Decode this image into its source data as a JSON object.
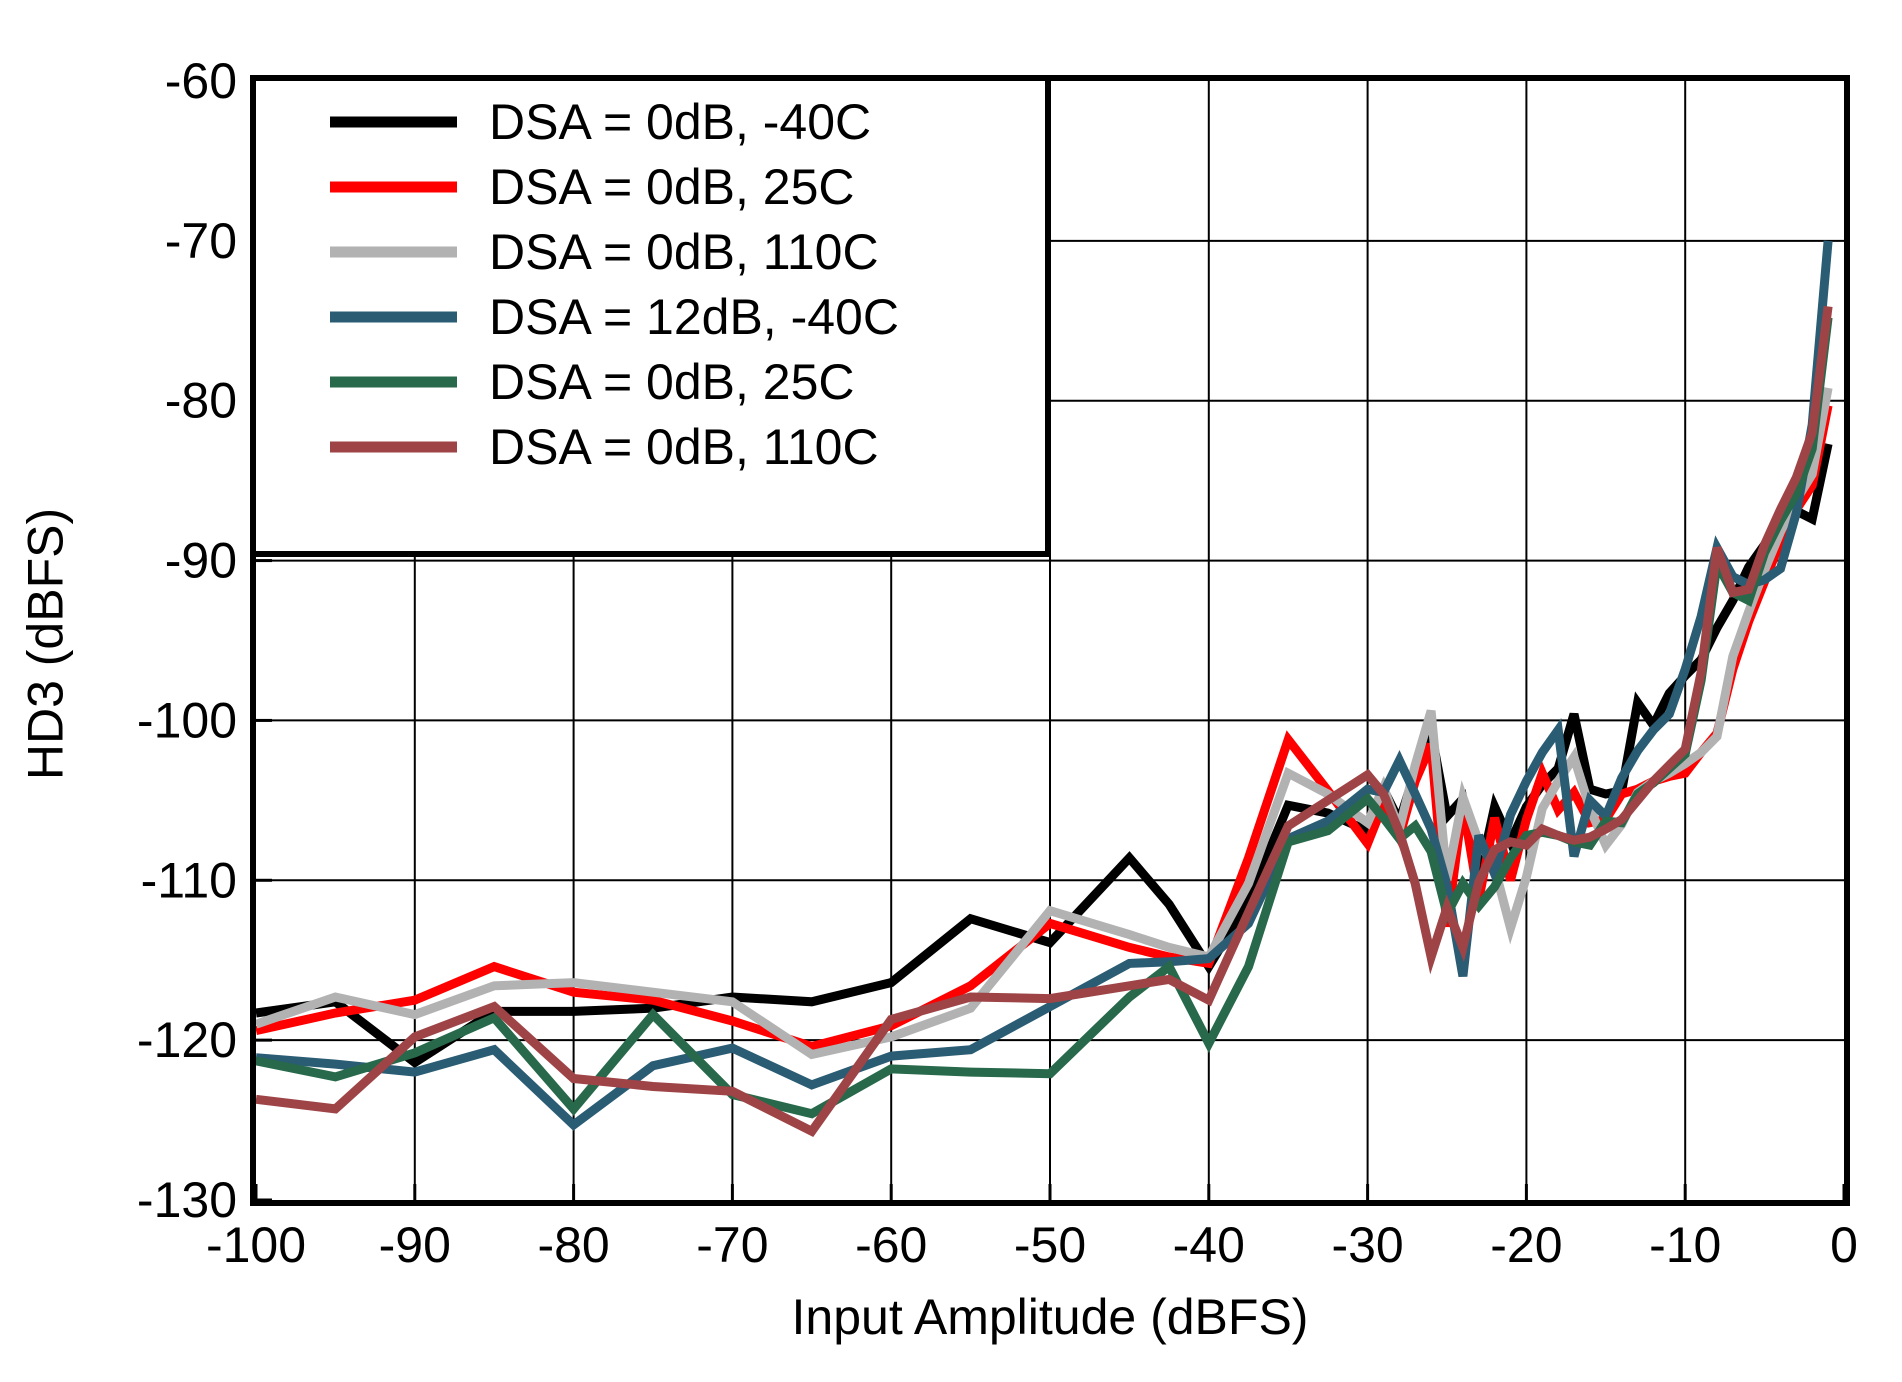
{
  "page": {
    "background": "#ffffff"
  },
  "axes": {
    "y_label": "HD3 (dBFS)",
    "x_label": "Input Amplitude (dBFS)",
    "y_ticks": [
      -60,
      -70,
      -80,
      -90,
      -100,
      -110,
      -120,
      -130
    ],
    "x_ticks": [
      -100,
      -90,
      -80,
      -70,
      -60,
      -50,
      -40,
      -30,
      -20,
      -10,
      0
    ]
  },
  "chart_data": {
    "type": "line",
    "title": "",
    "xlabel": "Input Amplitude (dBFS)",
    "ylabel": "HD3 (dBFS)",
    "xlim": [
      -100,
      0
    ],
    "ylim": [
      -130,
      -60
    ],
    "grid": "on",
    "grid_color": "#000000",
    "frame_color": "#000000",
    "legend_position": "top-left",
    "x": [
      -100,
      -95,
      -90,
      -85,
      -80,
      -75,
      -70,
      -65,
      -60,
      -55,
      -50,
      -45,
      -42.5,
      -40,
      -37.5,
      -35,
      -32.5,
      -30,
      -29,
      -28,
      -27,
      -26,
      -25,
      -24,
      -23,
      -22,
      -21,
      -20,
      -19,
      -18,
      -17,
      -16,
      -15,
      -14,
      -13,
      -12,
      -11,
      -10,
      -9,
      -8,
      -7,
      -6,
      -5,
      -4,
      -3,
      -2,
      -1
    ],
    "series": [
      {
        "name": "DSA = 0dB, -40C",
        "color": "#000000",
        "values": [
          -118.3,
          -117.6,
          -121.4,
          -118.2,
          -118.2,
          -118.0,
          -117.3,
          -117.6,
          -116.4,
          -112.4,
          -113.9,
          -108.6,
          -111.5,
          -115.4,
          -111.3,
          -105.3,
          -105.8,
          -106.9,
          -104.3,
          -106.3,
          -103.2,
          -100.7,
          -106.0,
          -104.9,
          -109.9,
          -105.4,
          -107.6,
          -105.4,
          -104.0,
          -103.0,
          -99.6,
          -104.3,
          -104.6,
          -104.4,
          -98.9,
          -100.3,
          -98.3,
          -97.2,
          -96.2,
          -94.2,
          -92.5,
          -90.4,
          -89.0,
          -88.0,
          -86.9,
          -87.4,
          -82.7
        ]
      },
      {
        "name": "DSA = 0dB, 25C",
        "color": "#ff0000",
        "values": [
          -119.4,
          -118.3,
          -117.5,
          -115.4,
          -117.0,
          -117.5,
          -118.8,
          -120.4,
          -119.1,
          -116.6,
          -112.7,
          -114.2,
          -114.8,
          -115.2,
          -108.6,
          -101.2,
          -104.4,
          -107.7,
          -105.2,
          -107.3,
          -103.8,
          -101.5,
          -112.9,
          -105.2,
          -111.2,
          -106.1,
          -110.0,
          -106.2,
          -103.3,
          -105.6,
          -104.5,
          -106.4,
          -106.2,
          -104.6,
          -104.3,
          -103.8,
          -103.5,
          -103.3,
          -102.0,
          -100.8,
          -96.8,
          -93.8,
          -91.3,
          -88.8,
          -86.8,
          -85.3,
          -80.3
        ]
      },
      {
        "name": "DSA = 0dB, 110C",
        "color": "#b2b2b2",
        "values": [
          -119.0,
          -117.3,
          -118.4,
          -116.6,
          -116.4,
          -117.0,
          -117.6,
          -120.9,
          -119.8,
          -118.0,
          -111.9,
          -113.4,
          -114.2,
          -114.8,
          -110.2,
          -103.3,
          -104.6,
          -106.4,
          -104.2,
          -106.8,
          -102.8,
          -99.4,
          -110.0,
          -104.8,
          -107.6,
          -109.2,
          -113.0,
          -109.8,
          -105.5,
          -103.8,
          -102.3,
          -105.5,
          -107.8,
          -106.5,
          -104.5,
          -103.8,
          -103.3,
          -102.7,
          -102.0,
          -101.0,
          -96.0,
          -93.2,
          -90.6,
          -88.2,
          -86.2,
          -84.6,
          -79.2
        ]
      },
      {
        "name": "DSA = 12dB, -40C",
        "color": "#2a5c74",
        "values": [
          -121.1,
          -121.5,
          -122.0,
          -120.6,
          -125.3,
          -121.6,
          -120.5,
          -122.8,
          -121.0,
          -120.6,
          -117.9,
          -115.2,
          -115.1,
          -114.9,
          -112.7,
          -107.4,
          -106.3,
          -104.3,
          -104.5,
          -102.5,
          -104.6,
          -106.8,
          -110.3,
          -116.0,
          -107.2,
          -109.6,
          -105.9,
          -103.8,
          -102.0,
          -100.6,
          -108.5,
          -105.0,
          -106.0,
          -103.6,
          -101.9,
          -100.6,
          -99.6,
          -96.8,
          -93.5,
          -89.2,
          -91.0,
          -91.5,
          -91.2,
          -90.5,
          -87.0,
          -81.5,
          -70.0
        ]
      },
      {
        "name": "DSA = 0dB, 25C",
        "color": "#27694a",
        "values": [
          -121.3,
          -122.3,
          -120.8,
          -118.6,
          -124.3,
          -118.4,
          -123.4,
          -124.6,
          -121.8,
          -122.0,
          -122.1,
          -117.3,
          -115.4,
          -120.2,
          -115.4,
          -107.6,
          -106.9,
          -104.9,
          -106.1,
          -107.4,
          -106.6,
          -108.2,
          -112.1,
          -110.2,
          -111.6,
          -110.4,
          -108.6,
          -107.2,
          -107.0,
          -107.2,
          -107.6,
          -107.8,
          -106.3,
          -106.4,
          -104.6,
          -103.9,
          -103.0,
          -102.1,
          -97.5,
          -90.2,
          -92.0,
          -92.5,
          -89.5,
          -87.5,
          -85.8,
          -83.0,
          -74.8
        ]
      },
      {
        "name": "DSA = 0dB, 110C",
        "color": "#9e4447",
        "values": [
          -123.7,
          -124.3,
          -119.8,
          -117.9,
          -122.4,
          -122.9,
          -123.2,
          -125.7,
          -118.7,
          -117.3,
          -117.4,
          -116.6,
          -116.2,
          -117.5,
          -112.0,
          -106.6,
          -105.0,
          -103.4,
          -104.6,
          -107.0,
          -110.2,
          -114.8,
          -111.7,
          -114.2,
          -110.1,
          -108.1,
          -107.6,
          -107.8,
          -106.8,
          -107.2,
          -107.5,
          -107.3,
          -106.8,
          -106.2,
          -105.0,
          -103.8,
          -102.8,
          -101.8,
          -97.0,
          -89.2,
          -92.0,
          -91.8,
          -89.0,
          -86.8,
          -84.8,
          -82.0,
          -74.1
        ]
      }
    ]
  }
}
